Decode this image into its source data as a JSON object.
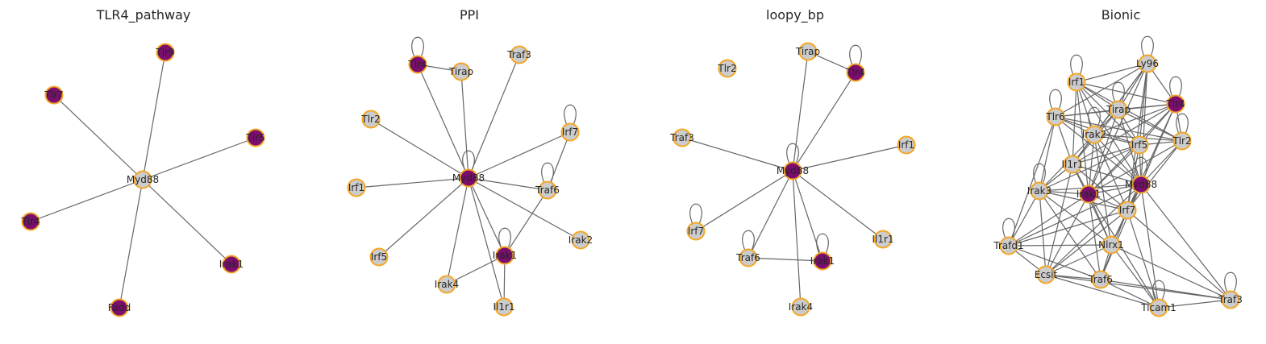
{
  "colors": {
    "highlight": "#7a0d6e",
    "normal": "#cccccc",
    "border": "#f5a623",
    "edge": "#666666"
  },
  "panels": [
    {
      "title": "TLR4_pathway",
      "nodes": [
        {
          "id": "Myd88",
          "hl": false
        },
        {
          "id": "Tlr9",
          "hl": true
        },
        {
          "id": "Tlr7",
          "hl": true
        },
        {
          "id": "Tlr5",
          "hl": true
        },
        {
          "id": "Tlr4",
          "hl": true
        },
        {
          "id": "Irak1",
          "hl": true
        },
        {
          "id": "Fadd",
          "hl": true
        }
      ],
      "edges": [
        [
          "Myd88",
          "Tlr9"
        ],
        [
          "Myd88",
          "Tlr7"
        ],
        [
          "Myd88",
          "Tlr5"
        ],
        [
          "Myd88",
          "Tlr4"
        ],
        [
          "Myd88",
          "Irak1"
        ],
        [
          "Myd88",
          "Fadd"
        ]
      ],
      "loops": []
    },
    {
      "title": "PPI",
      "nodes": [
        {
          "id": "Tlr4",
          "hl": true
        },
        {
          "id": "Tirap",
          "hl": false
        },
        {
          "id": "Traf3",
          "hl": false
        },
        {
          "id": "Tlr2",
          "hl": false
        },
        {
          "id": "Irf7",
          "hl": false
        },
        {
          "id": "Irf1",
          "hl": false
        },
        {
          "id": "Myd88",
          "hl": true
        },
        {
          "id": "Traf6",
          "hl": false
        },
        {
          "id": "Irak2",
          "hl": false
        },
        {
          "id": "Irf5",
          "hl": false
        },
        {
          "id": "Irak1",
          "hl": true
        },
        {
          "id": "Irak4",
          "hl": false
        },
        {
          "id": "Il1r1",
          "hl": false
        }
      ],
      "edges": [
        [
          "Myd88",
          "Tlr4"
        ],
        [
          "Tlr4",
          "Tirap"
        ],
        [
          "Myd88",
          "Tirap"
        ],
        [
          "Myd88",
          "Traf3"
        ],
        [
          "Myd88",
          "Tlr2"
        ],
        [
          "Myd88",
          "Irf7"
        ],
        [
          "Myd88",
          "Irf1"
        ],
        [
          "Myd88",
          "Traf6"
        ],
        [
          "Myd88",
          "Irak2"
        ],
        [
          "Myd88",
          "Irf5"
        ],
        [
          "Myd88",
          "Irak1"
        ],
        [
          "Myd88",
          "Irak4"
        ],
        [
          "Myd88",
          "Il1r1"
        ],
        [
          "Irf7",
          "Traf6"
        ],
        [
          "Traf6",
          "Irak1"
        ],
        [
          "Irak1",
          "Irak4"
        ],
        [
          "Irak1",
          "Il1r1"
        ]
      ],
      "loops": [
        "Tlr4",
        "Irf7",
        "Myd88",
        "Traf6",
        "Irak1"
      ]
    },
    {
      "title": "loopy_bp",
      "nodes": [
        {
          "id": "Tirap",
          "hl": false
        },
        {
          "id": "Tlr2",
          "hl": false
        },
        {
          "id": "Tlr4",
          "hl": true
        },
        {
          "id": "Traf3",
          "hl": false
        },
        {
          "id": "Irf1",
          "hl": false
        },
        {
          "id": "Myd88",
          "hl": true
        },
        {
          "id": "Irf7",
          "hl": false
        },
        {
          "id": "Il1r1",
          "hl": false
        },
        {
          "id": "Traf6",
          "hl": false
        },
        {
          "id": "Irak1",
          "hl": true
        },
        {
          "id": "Irak4",
          "hl": false
        }
      ],
      "edges": [
        [
          "Myd88",
          "Tirap"
        ],
        [
          "Tirap",
          "Tlr4"
        ],
        [
          "Myd88",
          "Tlr4"
        ],
        [
          "Myd88",
          "Traf3"
        ],
        [
          "Myd88",
          "Irf1"
        ],
        [
          "Myd88",
          "Irf7"
        ],
        [
          "Myd88",
          "Traf6"
        ],
        [
          "Myd88",
          "Irak1"
        ],
        [
          "Myd88",
          "Il1r1"
        ],
        [
          "Myd88",
          "Irak4"
        ],
        [
          "Traf6",
          "Irak1"
        ]
      ],
      "loops": [
        "Tlr4",
        "Myd88",
        "Irf7",
        "Traf6",
        "Irak1"
      ]
    },
    {
      "title": "Bionic",
      "nodes": [
        {
          "id": "Ly96",
          "hl": false
        },
        {
          "id": "Irf1",
          "hl": false
        },
        {
          "id": "Tlr4",
          "hl": true
        },
        {
          "id": "Tirap",
          "hl": false
        },
        {
          "id": "Tlr6",
          "hl": false
        },
        {
          "id": "Irak2",
          "hl": false
        },
        {
          "id": "Tlr2",
          "hl": false
        },
        {
          "id": "Irf5",
          "hl": false
        },
        {
          "id": "Il1r1",
          "hl": false
        },
        {
          "id": "Myd88",
          "hl": true
        },
        {
          "id": "Irak3",
          "hl": false
        },
        {
          "id": "Irak1",
          "hl": true
        },
        {
          "id": "Irf7",
          "hl": false
        },
        {
          "id": "Trafd1",
          "hl": false
        },
        {
          "id": "Nlrx1",
          "hl": false
        },
        {
          "id": "Ecsit",
          "hl": false
        },
        {
          "id": "Traf6",
          "hl": false
        },
        {
          "id": "Traf3",
          "hl": false
        },
        {
          "id": "Ticam1",
          "hl": false
        }
      ],
      "edges": [
        [
          "Ly96",
          "Irf1"
        ],
        [
          "Ly96",
          "Tlr4"
        ],
        [
          "Ly96",
          "Tirap"
        ],
        [
          "Ly96",
          "Tlr6"
        ],
        [
          "Ly96",
          "Irak2"
        ],
        [
          "Ly96",
          "Irf5"
        ],
        [
          "Ly96",
          "Myd88"
        ],
        [
          "Ly96",
          "Irak1"
        ],
        [
          "Ly96",
          "Il1r1"
        ],
        [
          "Ly96",
          "Irf7"
        ],
        [
          "Irf1",
          "Tlr4"
        ],
        [
          "Irf1",
          "Tirap"
        ],
        [
          "Irf1",
          "Irak2"
        ],
        [
          "Irf1",
          "Irf5"
        ],
        [
          "Irf1",
          "Myd88"
        ],
        [
          "Irf1",
          "Irak1"
        ],
        [
          "Irf1",
          "Tlr2"
        ],
        [
          "Irf1",
          "Il1r1"
        ],
        [
          "Tlr4",
          "Tirap"
        ],
        [
          "Tlr4",
          "Tlr6"
        ],
        [
          "Tlr4",
          "Irak2"
        ],
        [
          "Tlr4",
          "Tlr2"
        ],
        [
          "Tlr4",
          "Irf5"
        ],
        [
          "Tlr4",
          "Il1r1"
        ],
        [
          "Tlr4",
          "Myd88"
        ],
        [
          "Tlr4",
          "Irak1"
        ],
        [
          "Tlr4",
          "Irf7"
        ],
        [
          "Tirap",
          "Tlr6"
        ],
        [
          "Tirap",
          "Irak2"
        ],
        [
          "Tirap",
          "Tlr2"
        ],
        [
          "Tirap",
          "Irf5"
        ],
        [
          "Tirap",
          "Myd88"
        ],
        [
          "Tirap",
          "Irak1"
        ],
        [
          "Tirap",
          "Il1r1"
        ],
        [
          "Tlr6",
          "Irak2"
        ],
        [
          "Tlr6",
          "Irf5"
        ],
        [
          "Tlr6",
          "Il1r1"
        ],
        [
          "Tlr6",
          "Irak3"
        ],
        [
          "Tlr6",
          "Myd88"
        ],
        [
          "Tlr6",
          "Tlr2"
        ],
        [
          "Tlr6",
          "Trafd1"
        ],
        [
          "Irak2",
          "Irf5"
        ],
        [
          "Irak2",
          "Tlr2"
        ],
        [
          "Irak2",
          "Il1r1"
        ],
        [
          "Irak2",
          "Myd88"
        ],
        [
          "Irak2",
          "Irak3"
        ],
        [
          "Irak2",
          "Irak1"
        ],
        [
          "Irak2",
          "Irf7"
        ],
        [
          "Irak2",
          "Nlrx1"
        ],
        [
          "Tlr2",
          "Irf5"
        ],
        [
          "Tlr2",
          "Myd88"
        ],
        [
          "Tlr2",
          "Irak1"
        ],
        [
          "Tlr2",
          "Irf7"
        ],
        [
          "Irf5",
          "Il1r1"
        ],
        [
          "Irf5",
          "Myd88"
        ],
        [
          "Irf5",
          "Irak1"
        ],
        [
          "Irf5",
          "Irf7"
        ],
        [
          "Irf5",
          "Irak3"
        ],
        [
          "Il1r1",
          "Myd88"
        ],
        [
          "Il1r1",
          "Irak3"
        ],
        [
          "Il1r1",
          "Irak1"
        ],
        [
          "Il1r1",
          "Irf7"
        ],
        [
          "Il1r1",
          "Nlrx1"
        ],
        [
          "Il1r1",
          "Ecsit"
        ],
        [
          "Myd88",
          "Irak3"
        ],
        [
          "Myd88",
          "Irak1"
        ],
        [
          "Myd88",
          "Irf7"
        ],
        [
          "Myd88",
          "Trafd1"
        ],
        [
          "Myd88",
          "Nlrx1"
        ],
        [
          "Myd88",
          "Ecsit"
        ],
        [
          "Myd88",
          "Traf6"
        ],
        [
          "Myd88",
          "Traf3"
        ],
        [
          "Myd88",
          "Ticam1"
        ],
        [
          "Irak3",
          "Irak1"
        ],
        [
          "Irak3",
          "Irf7"
        ],
        [
          "Irak3",
          "Trafd1"
        ],
        [
          "Irak3",
          "Nlrx1"
        ],
        [
          "Irak3",
          "Ecsit"
        ],
        [
          "Irak3",
          "Traf6"
        ],
        [
          "Irak1",
          "Irf7"
        ],
        [
          "Irak1",
          "Trafd1"
        ],
        [
          "Irak1",
          "Nlrx1"
        ],
        [
          "Irak1",
          "Ecsit"
        ],
        [
          "Irak1",
          "Traf6"
        ],
        [
          "Irak1",
          "Ticam1"
        ],
        [
          "Irf7",
          "Trafd1"
        ],
        [
          "Irf7",
          "Nlrx1"
        ],
        [
          "Irf7",
          "Ecsit"
        ],
        [
          "Irf7",
          "Traf6"
        ],
        [
          "Irf7",
          "Ticam1"
        ],
        [
          "Trafd1",
          "Ecsit"
        ],
        [
          "Trafd1",
          "Nlrx1"
        ],
        [
          "Trafd1",
          "Traf6"
        ],
        [
          "Nlrx1",
          "Ecsit"
        ],
        [
          "Nlrx1",
          "Traf6"
        ],
        [
          "Nlrx1",
          "Ticam1"
        ],
        [
          "Nlrx1",
          "Traf3"
        ],
        [
          "Ecsit",
          "Traf6"
        ],
        [
          "Ecsit",
          "Ticam1"
        ],
        [
          "Ecsit",
          "Traf3"
        ],
        [
          "Traf6",
          "Ticam1"
        ],
        [
          "Traf6",
          "Traf3"
        ],
        [
          "Ticam1",
          "Traf3"
        ],
        [
          "Irf7",
          "Traf3"
        ]
      ],
      "loops": [
        "Ly96",
        "Irf1",
        "Tlr4",
        "Tirap",
        "Tlr6",
        "Tlr2",
        "Irak2",
        "Irak3",
        "Trafd1",
        "Traf3",
        "Ticam1",
        "Myd88"
      ]
    }
  ]
}
